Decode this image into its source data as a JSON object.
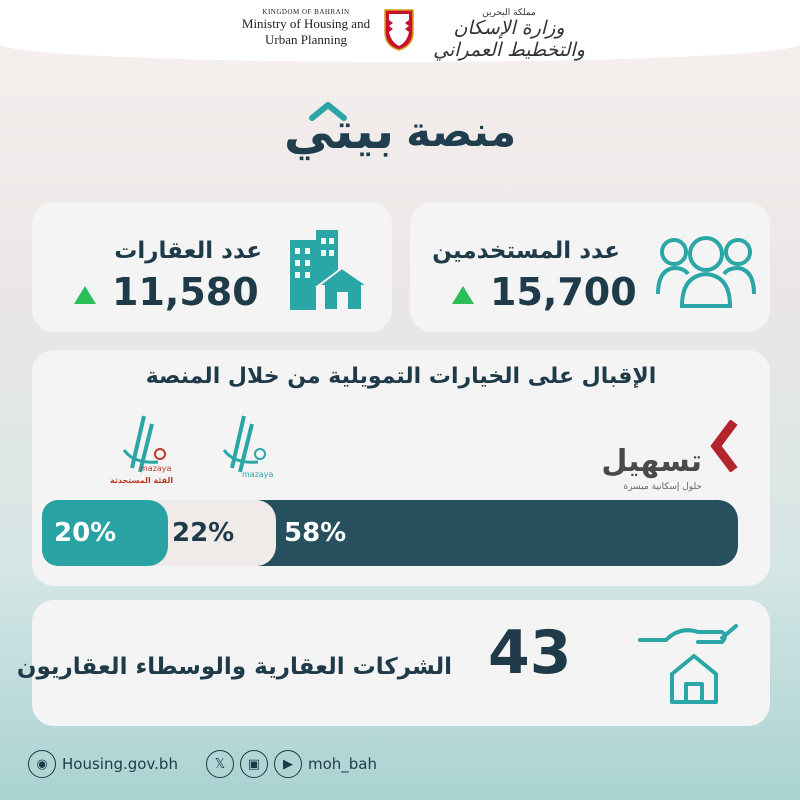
{
  "header": {
    "ministry_en_kingdom": "KINGDOM OF BAHRAIN",
    "ministry_en_line1": "Ministry of Housing and",
    "ministry_en_line2": "Urban Planning",
    "ministry_ar_kingdom": "مملكة البحرين",
    "ministry_ar_name": "وزارة الإسكان والتخطيط العمراني"
  },
  "title": {
    "prefix": "منصة",
    "brand": "بيتي"
  },
  "stats": {
    "users": {
      "label": "عدد المستخدمين",
      "value": "15,700",
      "trend": "up",
      "icon": "people-icon"
    },
    "properties": {
      "label": "عدد العقارات",
      "value": "11,580",
      "trend": "up",
      "icon": "buildings-house-icon"
    }
  },
  "financing": {
    "title": "الإقبال على الخيارات التمويلية من خلال المنصة",
    "segments": [
      {
        "brand": "tasheel",
        "label": "58%",
        "value": 58,
        "color": "#27505e"
      },
      {
        "brand": "mazaya",
        "label": "22%",
        "value": 22,
        "color": "#f0ebe9"
      },
      {
        "brand": "mazaya-eligible",
        "label": "20%",
        "value": 20,
        "color": "#29a2a3"
      }
    ],
    "logos": {
      "tasheel_name": "تسهيل",
      "tasheel_tagline": "حلول إسكانية ميسرة",
      "mazaya_name": "mazaya",
      "mazaya_eligible_caption": "الفئة المستحدثة"
    }
  },
  "companies": {
    "value": "43",
    "label": "الشركات العقارية والوسطاء العقاريون",
    "icon": "hand-house-icon"
  },
  "footer": {
    "website": "Housing.gov.bh",
    "handle": "moh_bah",
    "icons": [
      "globe-icon",
      "x-icon",
      "instagram-icon",
      "youtube-icon"
    ]
  },
  "colors": {
    "navy": "#1f3b4a",
    "teal": "#29a2a3",
    "dark_teal": "#27505e",
    "green": "#2bbf5a"
  }
}
